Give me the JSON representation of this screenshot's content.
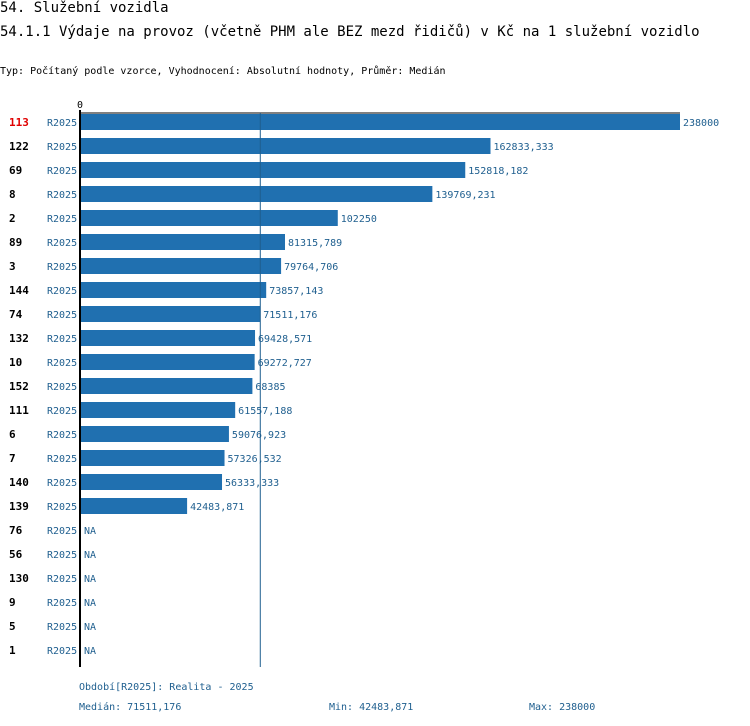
{
  "section_title": "54. Služební vozidla",
  "chart_title": "54.1.1 Výdaje na provoz (včetně PHM ale BEZ mezd řidičů) v Kč na 1 služební vozidlo",
  "subtitle": "Typ: Počítaný podle vzorce, Vyhodnocení: Absolutní hodnoty, Průměr: Medián",
  "footer": {
    "period": "Období[R2025]: Realita - 2025",
    "median": "Medián: 71511,176",
    "min": "Min: 42483,871",
    "max": "Max: 238000"
  },
  "colors": {
    "bar": "#2070b0",
    "label": "#1f5f8f",
    "highlight": "#e00000",
    "axis": "#000000"
  },
  "chart_data": {
    "type": "bar",
    "orientation": "horizontal",
    "title": "54.1.1 Výdaje na provoz (včetně PHM ale BEZ mezd řidičů) v Kč na 1 služební vozidlo",
    "axis_zero_label": "0",
    "xlim": [
      0,
      238000
    ],
    "median": 71511.176,
    "highlight_category": "113",
    "series_label": "R2025",
    "categories": [
      "113",
      "122",
      "69",
      "8",
      "2",
      "89",
      "3",
      "144",
      "74",
      "132",
      "10",
      "152",
      "111",
      "6",
      "7",
      "140",
      "139",
      "76",
      "56",
      "130",
      "9",
      "5",
      "1"
    ],
    "values": [
      238000,
      162833.333,
      152818.182,
      139769.231,
      102250,
      81315.789,
      79764.706,
      73857.143,
      71511.176,
      69428.571,
      69272.727,
      68385,
      61557.188,
      59076.923,
      57326.532,
      56333.333,
      42483.871,
      null,
      null,
      null,
      null,
      null,
      null
    ],
    "value_labels": [
      "238000",
      "162833,333",
      "152818,182",
      "139769,231",
      "102250",
      "81315,789",
      "79764,706",
      "73857,143",
      "71511,176",
      "69428,571",
      "69272,727",
      "68385",
      "61557,188",
      "59076,923",
      "57326,532",
      "56333,333",
      "42483,871",
      "NA",
      "NA",
      "NA",
      "NA",
      "NA",
      "NA"
    ]
  }
}
